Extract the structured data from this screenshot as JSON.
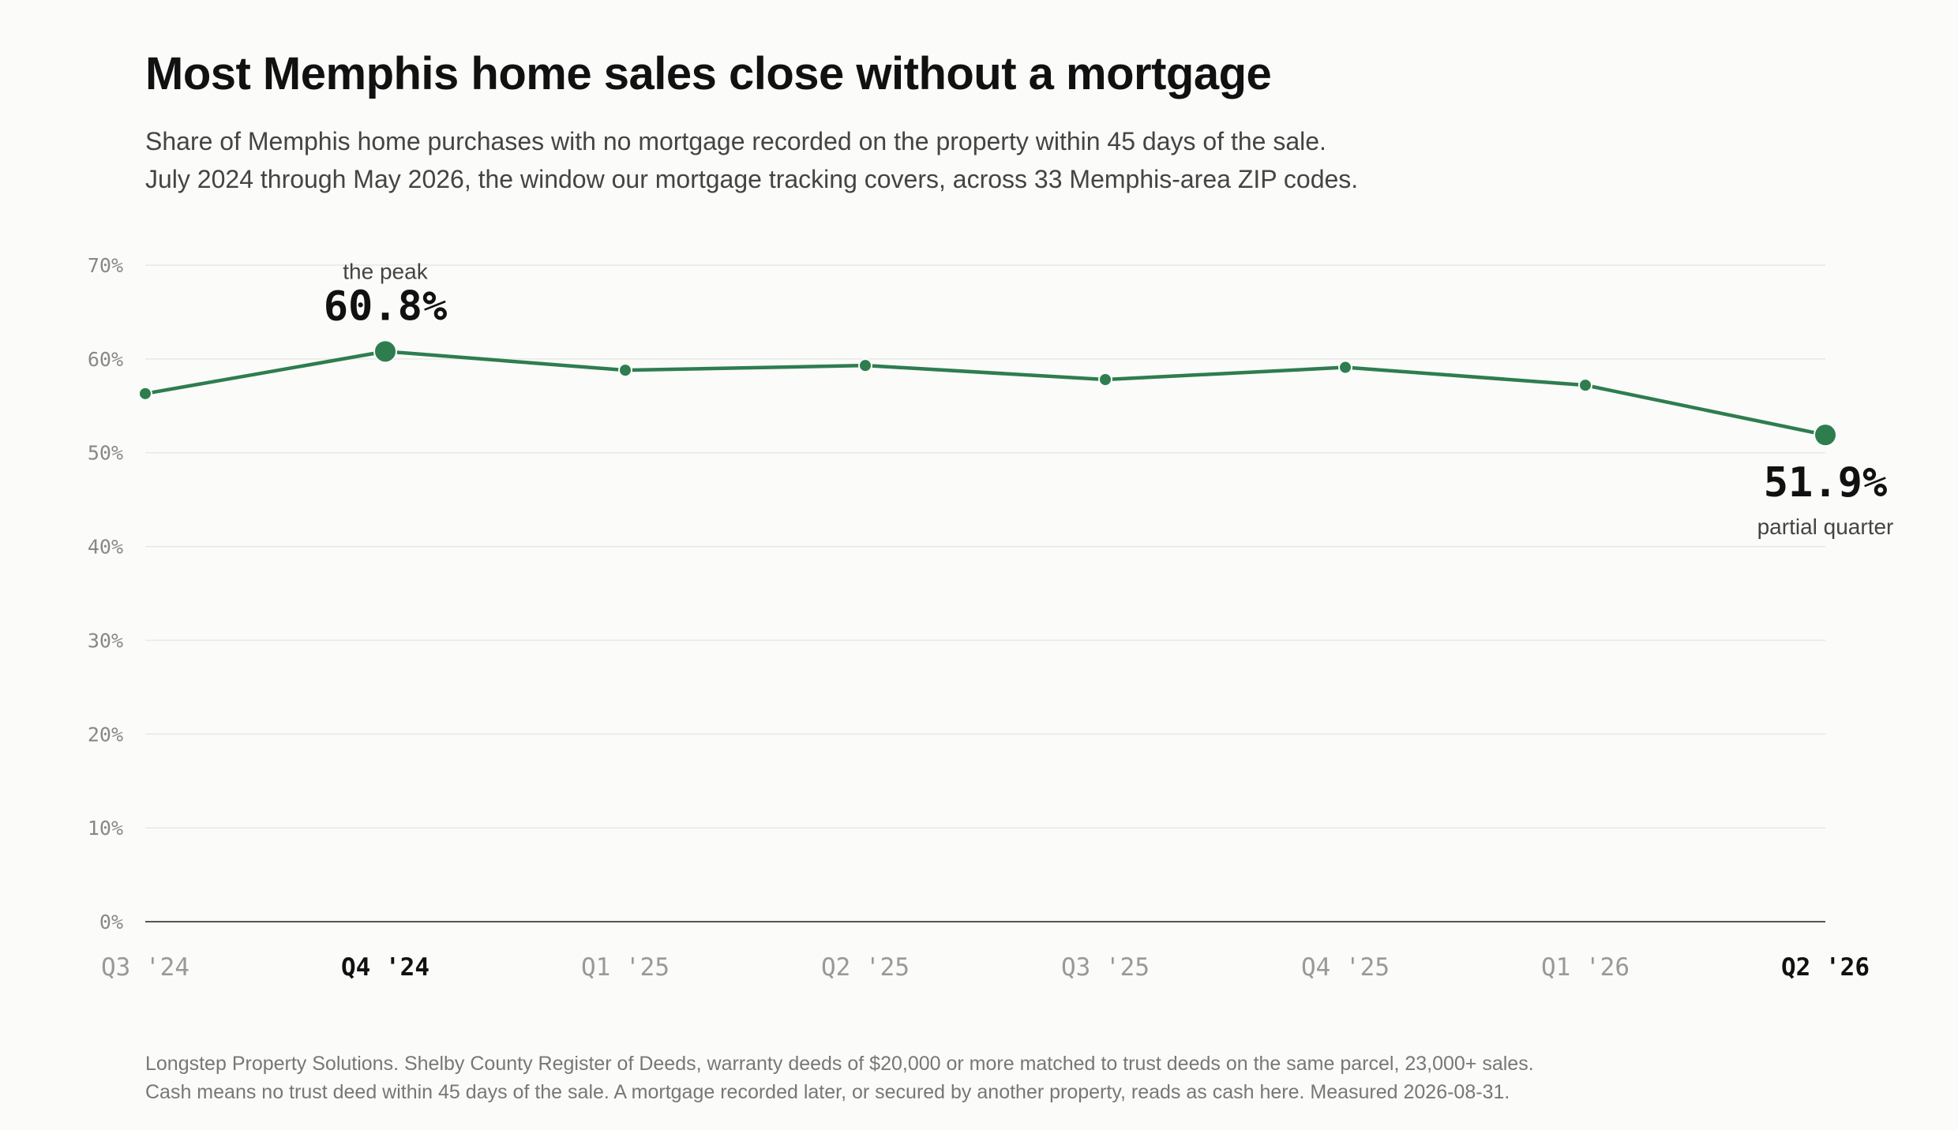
{
  "title": "Most Memphis home sales close without a mortgage",
  "subtitle": [
    "Share of Memphis home purchases with no mortgage recorded on the property within 45 days of the sale.",
    "July 2024 through May 2026, the window our mortgage tracking covers, across 33 Memphis-area ZIP codes."
  ],
  "footer": [
    "Longstep Property Solutions. Shelby County Register of Deeds, warranty deeds of $20,000 or more matched to trust deeds on the same parcel, 23,000+ sales.",
    "Cash means no trust deed within 45 days of the sale. A mortgage recorded later, or secured by another property, reads as cash here. Measured 2026-08-31."
  ],
  "colors": {
    "line": "#2e7d4f",
    "grid": "#e8e8e4",
    "axis": "#555555"
  },
  "chart_data": {
    "type": "line",
    "categories": [
      "Q3 '24",
      "Q4 '24",
      "Q1 '25",
      "Q2 '25",
      "Q3 '25",
      "Q4 '25",
      "Q1 '26",
      "Q2 '26"
    ],
    "emphasized_categories": [
      "Q4 '24",
      "Q2 '26"
    ],
    "series": [
      {
        "values": [
          56.3,
          60.8,
          58.8,
          59.3,
          57.8,
          59.1,
          57.2,
          51.9
        ]
      }
    ],
    "ylim": [
      0,
      70
    ],
    "yticks": [
      {
        "value": 0,
        "label": "0%"
      },
      {
        "value": 10,
        "label": "10%"
      },
      {
        "value": 20,
        "label": "20%"
      },
      {
        "value": 30,
        "label": "30%"
      },
      {
        "value": 40,
        "label": "40%"
      },
      {
        "value": 50,
        "label": "50%"
      },
      {
        "value": 60,
        "label": "60%"
      },
      {
        "value": 70,
        "label": "70%"
      }
    ],
    "grid": true,
    "annotations": [
      {
        "category": "Q4 '24",
        "value_label": "60.8%",
        "note": "the peak",
        "position": "above"
      },
      {
        "category": "Q2 '26",
        "value_label": "51.9%",
        "note": "partial quarter",
        "position": "below"
      }
    ]
  }
}
